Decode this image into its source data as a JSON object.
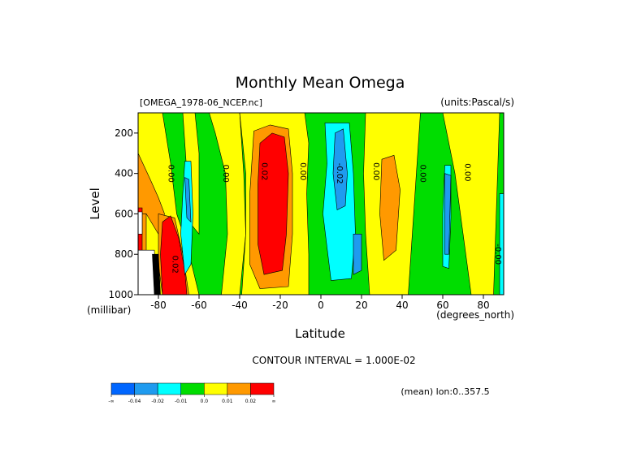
{
  "chart_data": {
    "type": "heatmap",
    "title": "Monthly Mean Omega",
    "file_label": "[OMEGA_1978-06_NCEP.nc]",
    "units_label": "(units:Pascal/s)",
    "xlabel": "Latitude",
    "x_units_label": "(degrees_north)",
    "ylabel": "Level",
    "y_units_label": "(millibar)",
    "xlim": [
      -90,
      90
    ],
    "ylim": [
      1000,
      100
    ],
    "x_tick_values": [
      -80,
      -60,
      -40,
      -20,
      0,
      20,
      40,
      60,
      80
    ],
    "x_tick_labels": [
      "-80",
      "-60",
      "-40",
      "-20",
      "0",
      "20",
      "40",
      "60",
      "80"
    ],
    "y_tick_values": [
      200,
      400,
      600,
      800,
      1000
    ],
    "y_tick_labels": [
      "200",
      "400",
      "600",
      "800",
      "1000"
    ],
    "contour_interval_label": "CONTOUR INTERVAL = 1.000E-02",
    "footer_label": "(mean) lon:0..357.5",
    "color_levels": [
      {
        "label": "-∞",
        "color": "#0066ff"
      },
      {
        "label": "-0.04",
        "color": "#1f9bef"
      },
      {
        "label": "-0.02",
        "color": "#00ffff"
      },
      {
        "label": "-0.01",
        "color": "#00dd00"
      },
      {
        "label": "0.0",
        "color": "#ffff00"
      },
      {
        "label": "0.01",
        "color": "#ff9900"
      },
      {
        "label": "0.02",
        "color": "#ff0000"
      },
      {
        "label": "∞",
        "color": "#ff0000"
      }
    ],
    "contour_labels": [
      {
        "text": "0.00",
        "lat": -75,
        "level": 400
      },
      {
        "text": "0.00",
        "lat": -48,
        "level": 400
      },
      {
        "text": "0.02",
        "lat": -29,
        "level": 390
      },
      {
        "text": "0.00",
        "lat": -10,
        "level": 390
      },
      {
        "text": "-0.02",
        "lat": 8,
        "level": 400
      },
      {
        "text": "0.00",
        "lat": 26,
        "level": 390
      },
      {
        "text": "0.00",
        "lat": 49,
        "level": 400
      },
      {
        "text": "0.00",
        "lat": 71,
        "level": 395
      },
      {
        "text": "-0.00",
        "lat": 86,
        "level": 800
      },
      {
        "text": "0.02",
        "lat": -73,
        "level": 850
      }
    ],
    "regions": [
      {
        "color": "#00dd00",
        "points": [
          [
            -90,
            100
          ],
          [
            90,
            100
          ],
          [
            90,
            1000
          ],
          [
            -90,
            1000
          ]
        ]
      },
      {
        "color": "#ffff00",
        "points": [
          [
            -90,
            100
          ],
          [
            -78,
            100
          ],
          [
            -74,
            350
          ],
          [
            -71,
            600
          ],
          [
            -66,
            750
          ],
          [
            -60,
            1000
          ],
          [
            -90,
            1000
          ]
        ]
      },
      {
        "color": "#ffff00",
        "points": [
          [
            -68,
            100
          ],
          [
            -62,
            100
          ],
          [
            -60,
            300
          ],
          [
            -60,
            700
          ],
          [
            -64,
            650
          ],
          [
            -66,
            400
          ]
        ]
      },
      {
        "color": "#ffff00",
        "points": [
          [
            -55,
            100
          ],
          [
            -40,
            100
          ],
          [
            -38,
            400
          ],
          [
            -37,
            700
          ],
          [
            -40,
            1000
          ],
          [
            -49,
            1000
          ],
          [
            -46,
            700
          ],
          [
            -47,
            400
          ],
          [
            -52,
            200
          ]
        ]
      },
      {
        "color": "#ffff00",
        "points": [
          [
            -40,
            100
          ],
          [
            -8,
            100
          ],
          [
            -6,
            250
          ],
          [
            -7,
            500
          ],
          [
            -6,
            800
          ],
          [
            -6,
            1000
          ],
          [
            -39,
            1000
          ],
          [
            -37,
            700
          ],
          [
            -37,
            400
          ]
        ]
      },
      {
        "color": "#ffff00",
        "points": [
          [
            22,
            100
          ],
          [
            49,
            100
          ],
          [
            47,
            400
          ],
          [
            45,
            700
          ],
          [
            43,
            1000
          ],
          [
            24,
            1000
          ],
          [
            22,
            700
          ],
          [
            21,
            400
          ]
        ]
      },
      {
        "color": "#ffff00",
        "points": [
          [
            60,
            100
          ],
          [
            88,
            100
          ],
          [
            87,
            400
          ],
          [
            86,
            700
          ],
          [
            85,
            1000
          ],
          [
            74,
            1000
          ],
          [
            70,
            700
          ],
          [
            66,
            400
          ],
          [
            62,
            200
          ]
        ]
      },
      {
        "color": "#ff9900",
        "points": [
          [
            -90,
            300
          ],
          [
            -84,
            430
          ],
          [
            -80,
            520
          ],
          [
            -77,
            600
          ],
          [
            -80,
            700
          ],
          [
            -86,
            600
          ],
          [
            -90,
            600
          ]
        ]
      },
      {
        "color": "#ff9900",
        "points": [
          [
            -80,
            600
          ],
          [
            -72,
            620
          ],
          [
            -68,
            800
          ],
          [
            -65,
            1000
          ],
          [
            -78,
            1000
          ],
          [
            -80,
            850
          ]
        ]
      },
      {
        "color": "#ff9900",
        "points": [
          [
            -33,
            190
          ],
          [
            -25,
            160
          ],
          [
            -16,
            180
          ],
          [
            -14,
            400
          ],
          [
            -14,
            700
          ],
          [
            -16,
            960
          ],
          [
            -30,
            970
          ],
          [
            -35,
            850
          ],
          [
            -35,
            500
          ]
        ]
      },
      {
        "color": "#ff9900",
        "points": [
          [
            30,
            330
          ],
          [
            36,
            310
          ],
          [
            39,
            480
          ],
          [
            37,
            780
          ],
          [
            31,
            830
          ],
          [
            29,
            600
          ]
        ]
      },
      {
        "color": "#ff9900",
        "points": [
          [
            -90,
            600
          ],
          [
            -86,
            600
          ],
          [
            -86,
            1000
          ],
          [
            -90,
            1000
          ]
        ]
      },
      {
        "color": "#ff0000",
        "points": [
          [
            -30,
            250
          ],
          [
            -24,
            200
          ],
          [
            -18,
            220
          ],
          [
            -16,
            400
          ],
          [
            -17,
            700
          ],
          [
            -19,
            880
          ],
          [
            -28,
            900
          ],
          [
            -31,
            750
          ],
          [
            -31,
            450
          ]
        ]
      },
      {
        "color": "#ff0000",
        "points": [
          [
            -78,
            640
          ],
          [
            -74,
            610
          ],
          [
            -70,
            720
          ],
          [
            -67,
            880
          ],
          [
            -66,
            1000
          ],
          [
            -78,
            1000
          ],
          [
            -79,
            800
          ]
        ]
      },
      {
        "color": "#ff0000",
        "points": [
          [
            -90,
            570
          ],
          [
            -88,
            570
          ],
          [
            -88,
            1000
          ],
          [
            -90,
            1000
          ]
        ]
      },
      {
        "color": "#00ffff",
        "points": [
          [
            -67,
            340
          ],
          [
            -64,
            340
          ],
          [
            -63,
            600
          ],
          [
            -64,
            850
          ],
          [
            -67,
            900
          ],
          [
            -69,
            700
          ],
          [
            -68,
            500
          ]
        ]
      },
      {
        "color": "#00ffff",
        "points": [
          [
            2,
            150
          ],
          [
            14,
            150
          ],
          [
            16,
            400
          ],
          [
            17,
            700
          ],
          [
            15,
            920
          ],
          [
            5,
            930
          ],
          [
            1,
            600
          ],
          [
            3,
            350
          ]
        ]
      },
      {
        "color": "#00ffff",
        "points": [
          [
            61,
            360
          ],
          [
            64,
            360
          ],
          [
            64,
            620
          ],
          [
            63,
            870
          ],
          [
            60,
            860
          ],
          [
            60,
            600
          ]
        ]
      },
      {
        "color": "#00ffff",
        "points": [
          [
            88,
            500
          ],
          [
            90,
            500
          ],
          [
            90,
            1000
          ],
          [
            88,
            1000
          ]
        ]
      },
      {
        "color": "#1f9bef",
        "points": [
          [
            -67,
            420
          ],
          [
            -65,
            430
          ],
          [
            -64,
            640
          ],
          [
            -66,
            620
          ]
        ]
      },
      {
        "color": "#1f9bef",
        "points": [
          [
            7,
            200
          ],
          [
            11,
            180
          ],
          [
            13,
            400
          ],
          [
            12,
            560
          ],
          [
            8,
            580
          ],
          [
            6,
            400
          ]
        ]
      },
      {
        "color": "#1f9bef",
        "points": [
          [
            16,
            700
          ],
          [
            20,
            700
          ],
          [
            20,
            880
          ],
          [
            16,
            900
          ]
        ]
      },
      {
        "color": "#1f9bef",
        "points": [
          [
            61,
            400
          ],
          [
            64,
            410
          ],
          [
            63,
            800
          ],
          [
            61,
            800
          ]
        ]
      },
      {
        "color": "#ffffff",
        "points": [
          [
            -90,
            590
          ],
          [
            -88,
            590
          ],
          [
            -88,
            700
          ],
          [
            -90,
            700
          ]
        ]
      },
      {
        "color": "#ffffff",
        "points": [
          [
            -90,
            780
          ],
          [
            -82,
            780
          ],
          [
            -81,
            1000
          ],
          [
            -90,
            1000
          ]
        ]
      },
      {
        "color": "#000000",
        "points": [
          [
            -83,
            800
          ],
          [
            -80,
            800
          ],
          [
            -79,
            1000
          ],
          [
            -82,
            1000
          ]
        ]
      }
    ]
  }
}
